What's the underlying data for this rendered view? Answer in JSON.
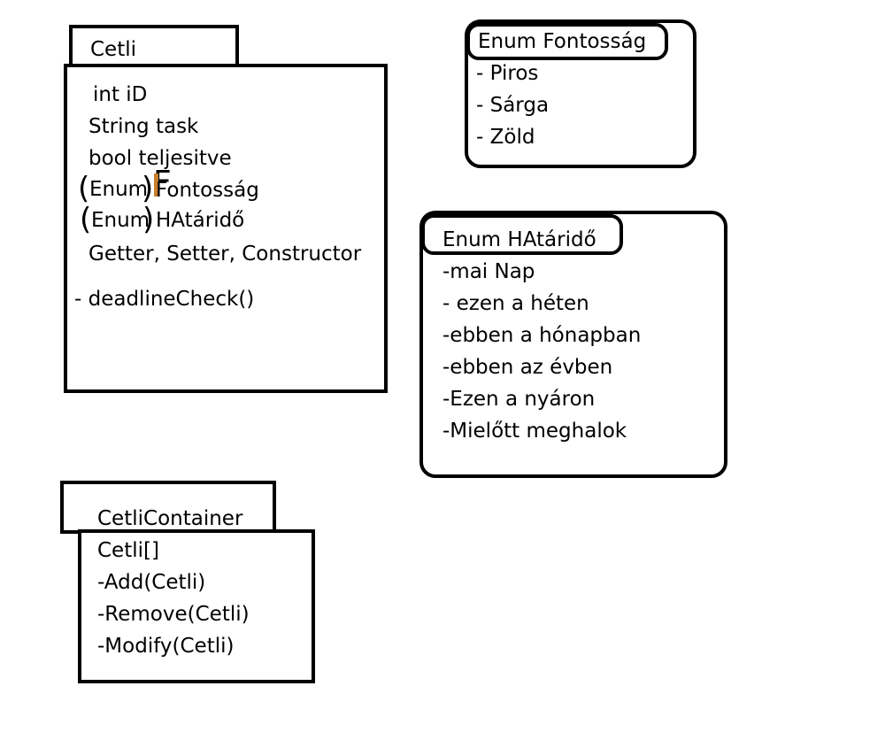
{
  "cetli": {
    "title": "Cetli",
    "fields": [
      "int iD",
      "String task",
      "bool teljesitve",
      "Enum",
      "Fontosság",
      "Enum",
      "HAtáridő",
      "Getter, Setter, Constructor"
    ],
    "method": "- deadlineCheck()",
    "overwrite_letter": "F"
  },
  "fontossag": {
    "title": "Enum Fontosság",
    "items": [
      "- Piros",
      "- Sárga",
      "- Zöld"
    ]
  },
  "hatarido": {
    "title": "Enum HAtáridő",
    "items": [
      "-mai Nap",
      "- ezen a héten",
      "-ebben a hónapban",
      "-ebben az évben",
      "-Ezen a nyáron",
      "-Mielőtt meghalok"
    ]
  },
  "container": {
    "title": "CetliContainer",
    "items": [
      "Cetli[]",
      "-Add(Cetli)",
      "-Remove(Cetli)",
      "-Modify(Cetli)"
    ]
  },
  "colors": {
    "stroke": "#000000",
    "overwrite_accent": "#c87e2c"
  }
}
